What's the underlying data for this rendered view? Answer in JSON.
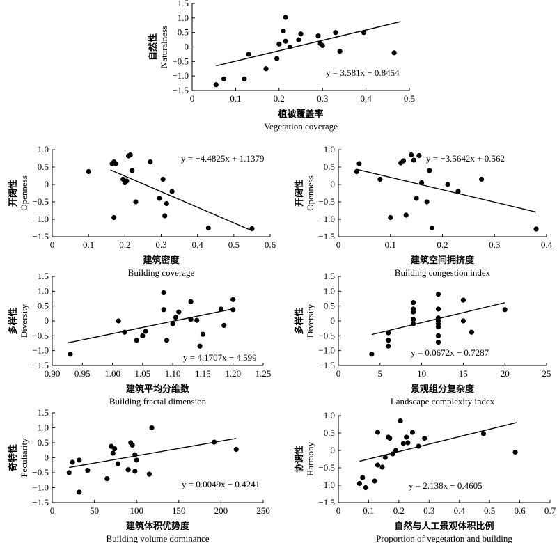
{
  "chart_data": [
    {
      "type": "scatter",
      "xlabel_cn": "植被覆盖率",
      "xlabel_en": "Vegetation coverage",
      "ylabel_cn": "自然性",
      "ylabel_en": "Naturalness",
      "equation": "y = 3.581x − 0.8454",
      "slope": 3.581,
      "intercept": -0.8454,
      "xlim": [
        0,
        0.5
      ],
      "ylim": [
        -1.5,
        1.5
      ],
      "xticks": [
        0,
        0.1,
        0.2,
        0.3,
        0.4,
        0.5
      ],
      "yticks": [
        -1.5,
        -1.0,
        -0.5,
        0,
        0.5,
        1.0,
        1.5
      ],
      "xtick_labels": [
        "0",
        "0.1",
        "0.2",
        "0.3",
        "0.4",
        "0.5"
      ],
      "ytick_labels": [
        "−1.5",
        "−1.0",
        "−0.5",
        "0",
        "0.5",
        "1.0",
        "1.5"
      ],
      "line_range": [
        0.055,
        0.48
      ],
      "points": [
        [
          0.055,
          -1.3
        ],
        [
          0.073,
          -1.1
        ],
        [
          0.12,
          -1.1
        ],
        [
          0.13,
          -0.25
        ],
        [
          0.17,
          -0.75
        ],
        [
          0.195,
          -0.4
        ],
        [
          0.2,
          0.1
        ],
        [
          0.21,
          0.55
        ],
        [
          0.215,
          1.02
        ],
        [
          0.215,
          0.2
        ],
        [
          0.225,
          0.0
        ],
        [
          0.245,
          0.25
        ],
        [
          0.25,
          0.45
        ],
        [
          0.29,
          0.38
        ],
        [
          0.295,
          0.12
        ],
        [
          0.3,
          0.05
        ],
        [
          0.33,
          0.5
        ],
        [
          0.34,
          -0.15
        ],
        [
          0.395,
          0.5
        ],
        [
          0.465,
          -0.2
        ]
      ]
    },
    {
      "type": "scatter",
      "xlabel_cn": "建筑密度",
      "xlabel_en": "Building coverage",
      "ylabel_cn": "开阔性",
      "ylabel_en": "Openness",
      "equation": "y = −4.4825x + 1.1379",
      "slope": -4.4825,
      "intercept": 1.1379,
      "xlim": [
        0,
        0.6
      ],
      "ylim": [
        -1.5,
        1.0
      ],
      "xticks": [
        0,
        0.1,
        0.2,
        0.3,
        0.4,
        0.5,
        0.6
      ],
      "yticks": [
        -1.5,
        -1.0,
        -0.5,
        0,
        0.5,
        1.0
      ],
      "xtick_labels": [
        "0",
        "0.1",
        "0.2",
        "0.3",
        "0.4",
        "0.5",
        "0.6"
      ],
      "ytick_labels": [
        "−1.5",
        "−1.0",
        "−0.5",
        "0",
        "0.5",
        "1.0"
      ],
      "line_range": [
        0.16,
        0.55
      ],
      "points": [
        [
          0.1,
          0.37
        ],
        [
          0.165,
          0.6
        ],
        [
          0.17,
          0.65
        ],
        [
          0.175,
          0.6
        ],
        [
          0.17,
          -0.95
        ],
        [
          0.195,
          0.15
        ],
        [
          0.2,
          0.05
        ],
        [
          0.205,
          0.1
        ],
        [
          0.21,
          0.82
        ],
        [
          0.215,
          0.85
        ],
        [
          0.22,
          0.4
        ],
        [
          0.23,
          -0.5
        ],
        [
          0.27,
          0.65
        ],
        [
          0.295,
          -0.4
        ],
        [
          0.305,
          0.15
        ],
        [
          0.31,
          -0.9
        ],
        [
          0.315,
          -0.55
        ],
        [
          0.33,
          -0.2
        ],
        [
          0.43,
          -1.25
        ],
        [
          0.55,
          -1.27
        ]
      ]
    },
    {
      "type": "scatter",
      "xlabel_cn": "建筑空间拥挤度",
      "xlabel_en": "Building congestion index",
      "ylabel_cn": "开阔性",
      "ylabel_en": "Openness",
      "equation": "y = −3.5642x + 0.562",
      "slope": -3.5642,
      "intercept": 0.562,
      "xlim": [
        0,
        0.4
      ],
      "ylim": [
        -1.5,
        1.0
      ],
      "xticks": [
        0,
        0.1,
        0.2,
        0.3,
        0.4
      ],
      "yticks": [
        -1.5,
        -1.0,
        -0.5,
        0,
        0.5,
        1.0
      ],
      "xtick_labels": [
        "0",
        "0.1",
        "0.2",
        "0.3",
        "0.4"
      ],
      "ytick_labels": [
        "−1.5",
        "−1.0",
        "−0.5",
        "0",
        "0.5",
        "1.0"
      ],
      "line_range": [
        0.035,
        0.38
      ],
      "points": [
        [
          0.035,
          0.37
        ],
        [
          0.04,
          0.6
        ],
        [
          0.08,
          0.15
        ],
        [
          0.1,
          -0.95
        ],
        [
          0.12,
          0.62
        ],
        [
          0.125,
          0.68
        ],
        [
          0.13,
          -0.88
        ],
        [
          0.14,
          0.85
        ],
        [
          0.145,
          0.7
        ],
        [
          0.15,
          -0.4
        ],
        [
          0.155,
          0.83
        ],
        [
          0.16,
          0.05
        ],
        [
          0.17,
          -0.5
        ],
        [
          0.175,
          0.4
        ],
        [
          0.18,
          -1.25
        ],
        [
          0.21,
          0.0
        ],
        [
          0.23,
          -0.2
        ],
        [
          0.275,
          0.15
        ],
        [
          0.38,
          -1.28
        ]
      ]
    },
    {
      "type": "scatter",
      "xlabel_cn": "建筑平均分维数",
      "xlabel_en": "Building fractal dimension",
      "ylabel_cn": "多样性",
      "ylabel_en": "Diversity",
      "equation": "y = 4.1707x − 4.599",
      "slope": 4.1707,
      "intercept": -4.599,
      "xlim": [
        0.9,
        1.25
      ],
      "ylim": [
        -1.5,
        1.5
      ],
      "xticks": [
        0.9,
        0.95,
        1.0,
        1.05,
        1.1,
        1.15,
        1.2,
        1.25
      ],
      "yticks": [
        -1.5,
        -1.0,
        -0.5,
        0,
        0.5,
        1.0,
        1.5
      ],
      "xtick_labels": [
        "0.90",
        "0.95",
        "1.00",
        "1.05",
        "1.10",
        "1.15",
        "1.20",
        "1.25"
      ],
      "ytick_labels": [
        "−1.5",
        "−1.0",
        "−0.5",
        "0",
        "0.5",
        "1.0",
        "1.5"
      ],
      "line_range": [
        0.925,
        1.2
      ],
      "points": [
        [
          0.93,
          -1.12
        ],
        [
          1.01,
          0.0
        ],
        [
          1.02,
          -0.38
        ],
        [
          1.04,
          -0.65
        ],
        [
          1.05,
          -0.5
        ],
        [
          1.055,
          -0.35
        ],
        [
          1.085,
          0.95
        ],
        [
          1.085,
          0.38
        ],
        [
          1.09,
          -0.65
        ],
        [
          1.1,
          -0.1
        ],
        [
          1.105,
          0.12
        ],
        [
          1.11,
          0.3
        ],
        [
          1.13,
          0.65
        ],
        [
          1.13,
          0.05
        ],
        [
          1.14,
          0.02
        ],
        [
          1.145,
          -0.85
        ],
        [
          1.15,
          -0.45
        ],
        [
          1.18,
          0.4
        ],
        [
          1.185,
          -0.15
        ],
        [
          1.2,
          0.72
        ],
        [
          1.2,
          0.38
        ]
      ]
    },
    {
      "type": "scatter",
      "xlabel_cn": "景观组分复杂度",
      "xlabel_en": "Landscape complexity index",
      "ylabel_cn": "多样性",
      "ylabel_en": "Diversity",
      "equation": "y = 0.0672x − 0.7287",
      "slope": 0.0672,
      "intercept": -0.7287,
      "xlim": [
        0,
        25
      ],
      "ylim": [
        -1.5,
        1.5
      ],
      "xticks": [
        0,
        5,
        10,
        15,
        20,
        25
      ],
      "yticks": [
        -1.5,
        -1.0,
        -0.5,
        0,
        0.5,
        1.0,
        1.5
      ],
      "xtick_labels": [
        "0",
        "5",
        "10",
        "15",
        "20",
        "25"
      ],
      "ytick_labels": [
        "−1.5",
        "−1.0",
        "−0.5",
        "0",
        "0.5",
        "1.0",
        "1.5"
      ],
      "line_range": [
        4,
        20
      ],
      "points": [
        [
          4,
          -1.12
        ],
        [
          6,
          -0.4
        ],
        [
          6,
          -0.65
        ],
        [
          6,
          -0.85
        ],
        [
          9,
          0.62
        ],
        [
          9,
          0.4
        ],
        [
          9,
          0.3
        ],
        [
          9,
          0.05
        ],
        [
          9,
          -0.1
        ],
        [
          12,
          0.9
        ],
        [
          12,
          0.4
        ],
        [
          12,
          0.1
        ],
        [
          12,
          0.0
        ],
        [
          12,
          -0.1
        ],
        [
          12,
          -0.2
        ],
        [
          12,
          -0.5
        ],
        [
          12,
          -0.72
        ],
        [
          15,
          0.7
        ],
        [
          15,
          0.0
        ],
        [
          16,
          -0.38
        ],
        [
          20,
          0.38
        ]
      ]
    },
    {
      "type": "scatter",
      "xlabel_cn": "建筑体积优势度",
      "xlabel_en": "Building volume dominance",
      "ylabel_cn": "奇特性",
      "ylabel_en": "Peculiarity",
      "equation": "y = 0.0049x − 0.4241",
      "slope": 0.0049,
      "intercept": -0.4241,
      "xlim": [
        0,
        250
      ],
      "ylim": [
        -1.5,
        1.5
      ],
      "xticks": [
        0,
        50,
        100,
        150,
        200,
        250
      ],
      "yticks": [
        -1.5,
        -1.0,
        -0.5,
        0,
        0.5,
        1.0,
        1.5
      ],
      "xtick_labels": [
        "0",
        "50",
        "100",
        "150",
        "200",
        "250"
      ],
      "ytick_labels": [
        "−1.5",
        "−1.0",
        "−0.5",
        "0",
        "0.5",
        "1.0",
        "1.5"
      ],
      "line_range": [
        20,
        218
      ],
      "points": [
        [
          20,
          -0.5
        ],
        [
          24,
          -0.15
        ],
        [
          32,
          -1.15
        ],
        [
          32,
          -0.08
        ],
        [
          42,
          -0.42
        ],
        [
          65,
          -0.7
        ],
        [
          70,
          0.38
        ],
        [
          72,
          0.15
        ],
        [
          74,
          0.3
        ],
        [
          78,
          -0.2
        ],
        [
          90,
          -0.4
        ],
        [
          93,
          0.5
        ],
        [
          95,
          0.42
        ],
        [
          98,
          0.1
        ],
        [
          98,
          -0.45
        ],
        [
          100,
          -0.08
        ],
        [
          115,
          -0.55
        ],
        [
          118,
          1.0
        ],
        [
          192,
          0.52
        ],
        [
          218,
          0.28
        ]
      ]
    },
    {
      "type": "scatter",
      "xlabel_cn": "自然与人工景观体积比例",
      "xlabel_en": "Proportion of vegetation and building",
      "ylabel_cn": "协调性",
      "ylabel_en": "Harmony",
      "equation": "y = 2.138x − 0.4605",
      "slope": 2.138,
      "intercept": -0.4605,
      "xlim": [
        0,
        0.7
      ],
      "ylim": [
        -1.5,
        1.0
      ],
      "xticks": [
        0,
        0.1,
        0.2,
        0.3,
        0.4,
        0.5,
        0.6,
        0.7
      ],
      "yticks": [
        -1.5,
        -1.0,
        -0.5,
        0,
        0.5,
        1.0
      ],
      "xtick_labels": [
        "0",
        "0.1",
        "0.2",
        "0.3",
        "0.4",
        "0.5",
        "0.6",
        "0.7"
      ],
      "ytick_labels": [
        "−1.5",
        "−1.0",
        "−0.5",
        "0",
        "0.5",
        "1.0"
      ],
      "line_range": [
        0.07,
        0.59
      ],
      "points": [
        [
          0.07,
          -0.95
        ],
        [
          0.08,
          -0.78
        ],
        [
          0.09,
          -1.07
        ],
        [
          0.12,
          -0.88
        ],
        [
          0.13,
          0.52
        ],
        [
          0.13,
          -0.42
        ],
        [
          0.145,
          -0.48
        ],
        [
          0.155,
          -0.2
        ],
        [
          0.165,
          0.38
        ],
        [
          0.17,
          0.35
        ],
        [
          0.18,
          -0.1
        ],
        [
          0.19,
          0.0
        ],
        [
          0.205,
          0.85
        ],
        [
          0.215,
          0.2
        ],
        [
          0.225,
          0.38
        ],
        [
          0.23,
          0.22
        ],
        [
          0.245,
          0.52
        ],
        [
          0.265,
          0.12
        ],
        [
          0.285,
          0.35
        ],
        [
          0.48,
          0.48
        ],
        [
          0.585,
          -0.05
        ]
      ]
    }
  ]
}
